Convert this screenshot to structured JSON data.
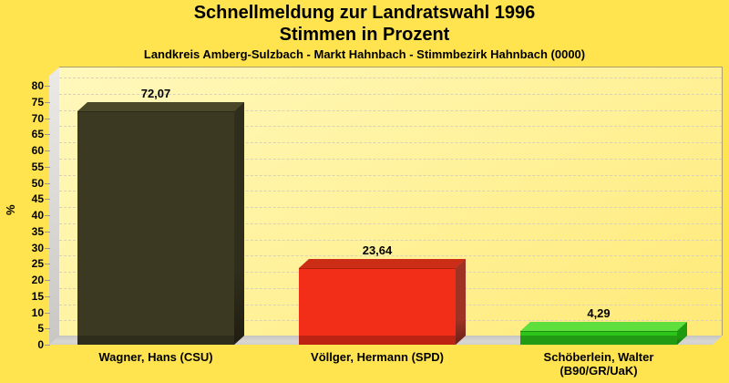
{
  "header": {
    "title_line1": "Schnellmeldung zur Landratswahl 1996",
    "title_line2": "Stimmen in Prozent",
    "subtitle": "Landkreis Amberg-Sulzbach - Markt Hahnbach - Stimmbezirk Hahnbach (0000)"
  },
  "chart_data": {
    "type": "bar",
    "style": "3d-bars, dashed horizontal gridlines, no legend",
    "title": "Schnellmeldung zur Landratswahl 1996 — Stimmen in Prozent",
    "subtitle": "Landkreis Amberg-Sulzbach - Markt Hahnbach - Stimmbezirk Hahnbach (0000)",
    "ylabel": "%",
    "xlabel": "",
    "ylim": [
      0,
      80
    ],
    "ytick_step": 5,
    "yticks": [
      0,
      5,
      10,
      15,
      20,
      25,
      30,
      35,
      40,
      45,
      50,
      55,
      60,
      65,
      70,
      75,
      80
    ],
    "categories": [
      [
        "Wagner, Hans (CSU)"
      ],
      [
        "Völlger, Hermann (SPD)"
      ],
      [
        "Schöberlein, Walter",
        "(B90/GR/UaK)"
      ]
    ],
    "values": [
      72.07,
      23.64,
      4.29
    ],
    "value_labels": [
      "72,07",
      "23,64",
      "4,29"
    ],
    "bar_colors": [
      {
        "front": "#3b3922",
        "top": "#4b4829",
        "side": "#2f2d1b"
      },
      {
        "front": "#f22e18",
        "top": "#cb2d17",
        "side": "#a03224"
      },
      {
        "front": "#2cc61a",
        "top": "#5fdf3d",
        "side": "#1f9b12"
      }
    ]
  },
  "colors": {
    "background": "#ffe44f",
    "plot_fill_light": "#fff8bc",
    "plot_fill_dark": "#ffe976",
    "plot_border": "#a89e6e",
    "wall_gray": "#dbd9d5",
    "gridline": "#d9d2b8",
    "text": "#000000"
  }
}
